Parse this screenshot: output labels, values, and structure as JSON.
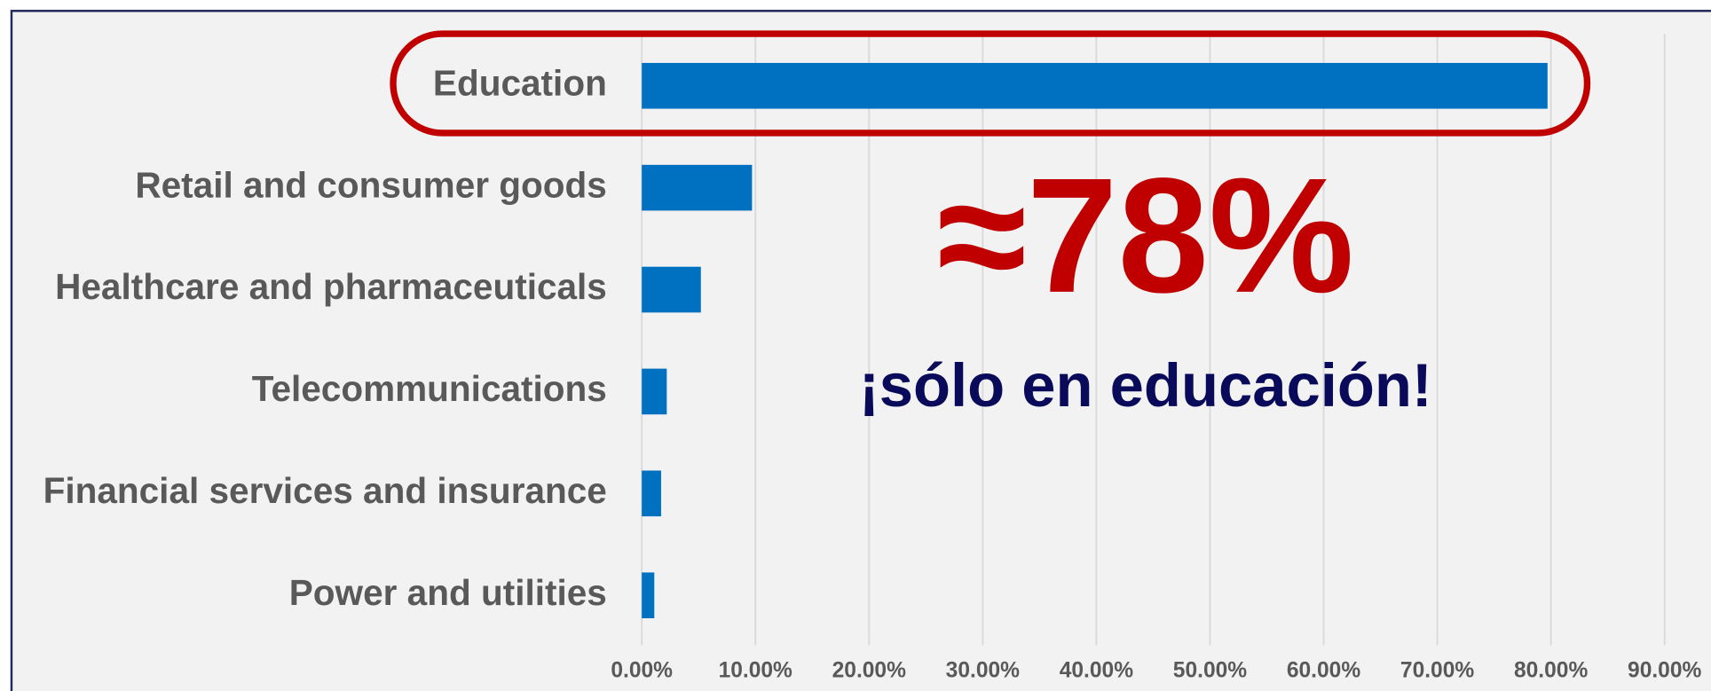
{
  "chart_data": {
    "type": "bar",
    "orientation": "horizontal",
    "categories": [
      "Education",
      "Retail and consumer goods",
      "Healthcare and pharmaceuticals",
      "Telecommunications",
      "Financial services and insurance",
      "Power and utilities"
    ],
    "values": [
      79.7,
      9.7,
      5.2,
      2.2,
      1.7,
      1.1
    ],
    "color": "#0070c0",
    "xlim": [
      0,
      90
    ],
    "xticks": [
      {
        "value": 0,
        "label": "0.00%"
      },
      {
        "value": 10,
        "label": "10.00%"
      },
      {
        "value": 20,
        "label": "20.00%"
      },
      {
        "value": 30,
        "label": "30.00%"
      },
      {
        "value": 40,
        "label": "40.00%"
      },
      {
        "value": 50,
        "label": "50.00%"
      },
      {
        "value": 60,
        "label": "60.00%"
      },
      {
        "value": 70,
        "label": "70.00%"
      },
      {
        "value": 80,
        "label": "80.00%"
      },
      {
        "value": 90,
        "label": "90.00%"
      }
    ],
    "grid": true,
    "annotations": [
      "≈78%",
      "¡sólo en educación!"
    ]
  }
}
